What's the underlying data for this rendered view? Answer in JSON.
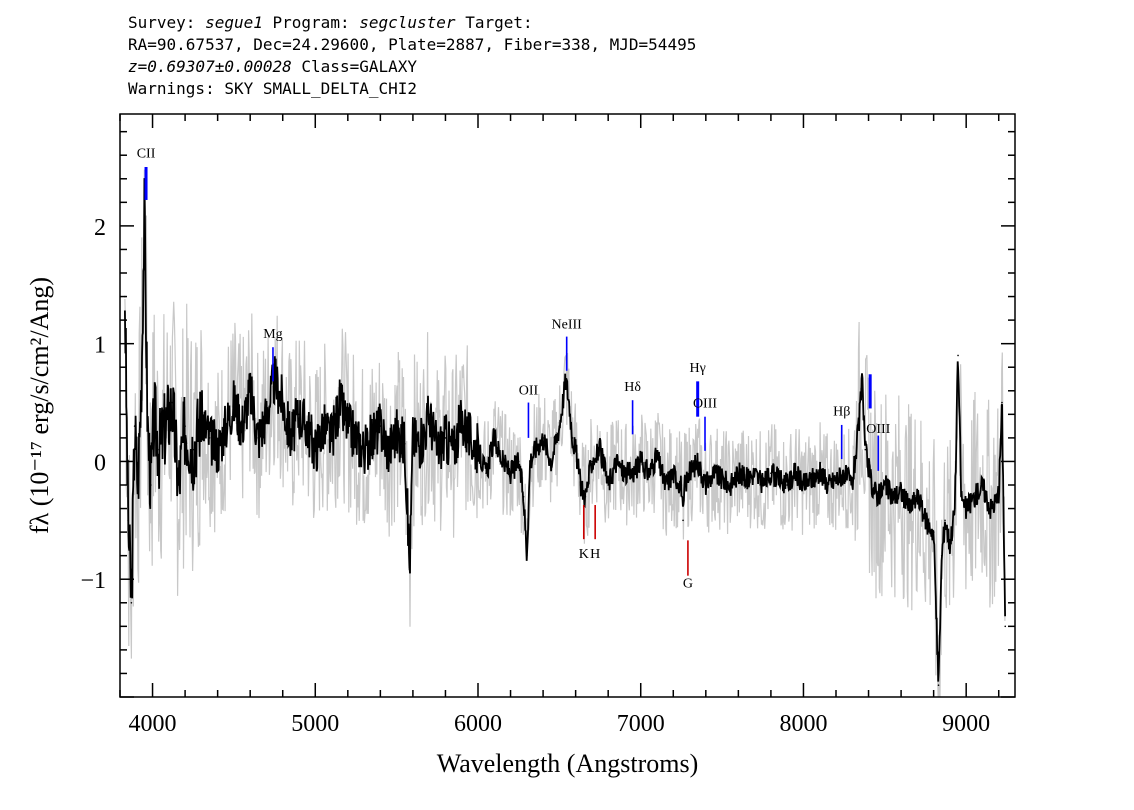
{
  "header": {
    "line1": {
      "survey_label": "Survey:",
      "survey": "segue1",
      "program_label": "Program:",
      "program": "segcluster",
      "target_label": "Target:"
    },
    "line2": "RA=90.67537, Dec=24.29600, Plate=2887, Fiber=338, MJD=54495",
    "line3": {
      "redshift": "z=0.69307±0.00028",
      "class": "Class=GALAXY"
    },
    "line4": "Warnings: SKY SMALL_DELTA_CHI2"
  },
  "chart_data": {
    "type": "line",
    "xlabel": "Wavelength (Angstroms)",
    "ylabel": "fλ (10⁻¹⁷ erg/s/cm²/Ang)",
    "xlim": [
      3800,
      9300
    ],
    "ylim": [
      -2.0,
      2.95
    ],
    "x_ticks": [
      4000,
      5000,
      6000,
      7000,
      8000,
      9000
    ],
    "y_ticks": [
      -1,
      0,
      1,
      2
    ],
    "grid": false,
    "series": [
      {
        "role": "flux",
        "color": "#000000",
        "x": [
          3830,
          3850,
          3870,
          3890,
          3910,
          3930,
          3950,
          3970,
          3990,
          4010,
          4040,
          4080,
          4120,
          4160,
          4200,
          4250,
          4300,
          4350,
          4400,
          4450,
          4500,
          4550,
          4600,
          4650,
          4700,
          4750,
          4800,
          4850,
          4900,
          4950,
          5000,
          5050,
          5100,
          5150,
          5200,
          5250,
          5300,
          5350,
          5400,
          5450,
          5500,
          5550,
          5580,
          5600,
          5650,
          5700,
          5750,
          5800,
          5850,
          5900,
          5950,
          6000,
          6050,
          6100,
          6150,
          6200,
          6250,
          6280,
          6300,
          6320,
          6350,
          6400,
          6450,
          6500,
          6540,
          6560,
          6580,
          6600,
          6630,
          6660,
          6700,
          6750,
          6800,
          6850,
          6900,
          6950,
          7000,
          7050,
          7100,
          7150,
          7200,
          7250,
          7260,
          7270,
          7300,
          7350,
          7400,
          7450,
          7500,
          7550,
          7600,
          7650,
          7700,
          7750,
          7800,
          7850,
          7900,
          7950,
          8000,
          8050,
          8100,
          8150,
          8200,
          8250,
          8300,
          8340,
          8360,
          8380,
          8420,
          8460,
          8500,
          8550,
          8600,
          8650,
          8700,
          8750,
          8800,
          8830,
          8850,
          8870,
          8900,
          8930,
          8950,
          8970,
          9000,
          9050,
          9100,
          9150,
          9200,
          9220,
          9240
        ],
        "y": [
          1.4,
          -0.5,
          -1.2,
          0.3,
          -0.2,
          0.6,
          2.1,
          0.3,
          -0.2,
          0.4,
          0.1,
          0.3,
          0.5,
          -0.2,
          0.3,
          0.1,
          0.4,
          0.2,
          0.1,
          0.3,
          0.5,
          0.3,
          0.6,
          0.2,
          0.4,
          0.7,
          0.5,
          0.2,
          0.4,
          0.3,
          0.1,
          0.3,
          0.2,
          0.5,
          0.3,
          0.2,
          0.1,
          0.2,
          0.3,
          0.1,
          0.25,
          0.15,
          -0.9,
          0.2,
          0.15,
          0.4,
          0.1,
          0.2,
          0.1,
          0.35,
          0.2,
          0.1,
          -0.1,
          0.2,
          0.0,
          -0.1,
          0.0,
          -0.3,
          -0.8,
          0.0,
          0.1,
          0.2,
          0.0,
          0.3,
          0.7,
          0.5,
          0.2,
          0.1,
          -0.2,
          -0.3,
          0.0,
          0.1,
          -0.2,
          0.0,
          -0.1,
          -0.1,
          0.0,
          -0.1,
          0.05,
          -0.2,
          -0.1,
          -0.2,
          -0.5,
          -0.2,
          -0.1,
          0.0,
          -0.2,
          -0.1,
          -0.15,
          -0.2,
          -0.1,
          -0.15,
          -0.1,
          -0.2,
          -0.1,
          -0.15,
          -0.2,
          -0.1,
          -0.2,
          -0.15,
          -0.1,
          -0.2,
          -0.15,
          -0.1,
          -0.2,
          0.3,
          0.7,
          0.1,
          -0.2,
          -0.3,
          -0.2,
          -0.3,
          -0.25,
          -0.4,
          -0.3,
          -0.5,
          -0.6,
          -1.9,
          -0.8,
          -0.5,
          -0.7,
          -0.4,
          0.9,
          -0.3,
          -0.4,
          -0.3,
          -0.2,
          -0.4,
          -0.3,
          0.5,
          -1.4
        ]
      }
    ],
    "lines": [
      {
        "name": "CII",
        "x": 3960,
        "y_label": 2.58,
        "y_top": 2.5,
        "y_bottom": 2.22,
        "color": "#0000ff"
      },
      {
        "name": "Mg",
        "x": 4740,
        "y_label": 1.05,
        "y_top": 0.97,
        "y_bottom": 0.68,
        "color": "#0000ff"
      },
      {
        "name": "OII",
        "x": 6310,
        "y_label": 0.57,
        "y_top": 0.5,
        "y_bottom": 0.2,
        "color": "#0000ff"
      },
      {
        "name": "NeIII",
        "x": 6545,
        "y_label": 1.13,
        "y_top": 1.06,
        "y_bottom": 0.77,
        "color": "#0000ff"
      },
      {
        "name": "Hδ",
        "x": 6950,
        "y_label": 0.6,
        "y_top": 0.52,
        "y_bottom": 0.23,
        "color": "#0000ff"
      },
      {
        "name": "Hγ",
        "x": 7350,
        "y_label": 0.76,
        "y_top": 0.68,
        "y_bottom": 0.38,
        "color": "#0000ff"
      },
      {
        "name": "OIII",
        "x": 7395,
        "y_label": 0.46,
        "y_top": 0.38,
        "y_bottom": 0.09,
        "color": "#0000ff"
      },
      {
        "name": "Hβ",
        "x": 8235,
        "y_label": 0.39,
        "y_top": 0.31,
        "y_bottom": 0.02,
        "color": "#0000ff"
      },
      {
        "name": "OIII",
        "x": 8460,
        "y_label": 0.24,
        "y_top": 0.22,
        "y_bottom": -0.08,
        "color": "#0000ff"
      },
      {
        "name": "",
        "x": 8410,
        "y_label": null,
        "y_top": 0.74,
        "y_bottom": 0.45,
        "color": "#0000ff"
      },
      {
        "name": "K",
        "x": 6650,
        "y_label": -0.82,
        "y_top": -0.37,
        "y_bottom": -0.66,
        "color": "#cc0000"
      },
      {
        "name": "H",
        "x": 6720,
        "y_label": -0.82,
        "y_top": -0.37,
        "y_bottom": -0.66,
        "color": "#cc0000"
      },
      {
        "name": "G",
        "x": 7290,
        "y_label": -1.07,
        "y_top": -0.67,
        "y_bottom": -0.97,
        "color": "#cc0000"
      }
    ]
  }
}
